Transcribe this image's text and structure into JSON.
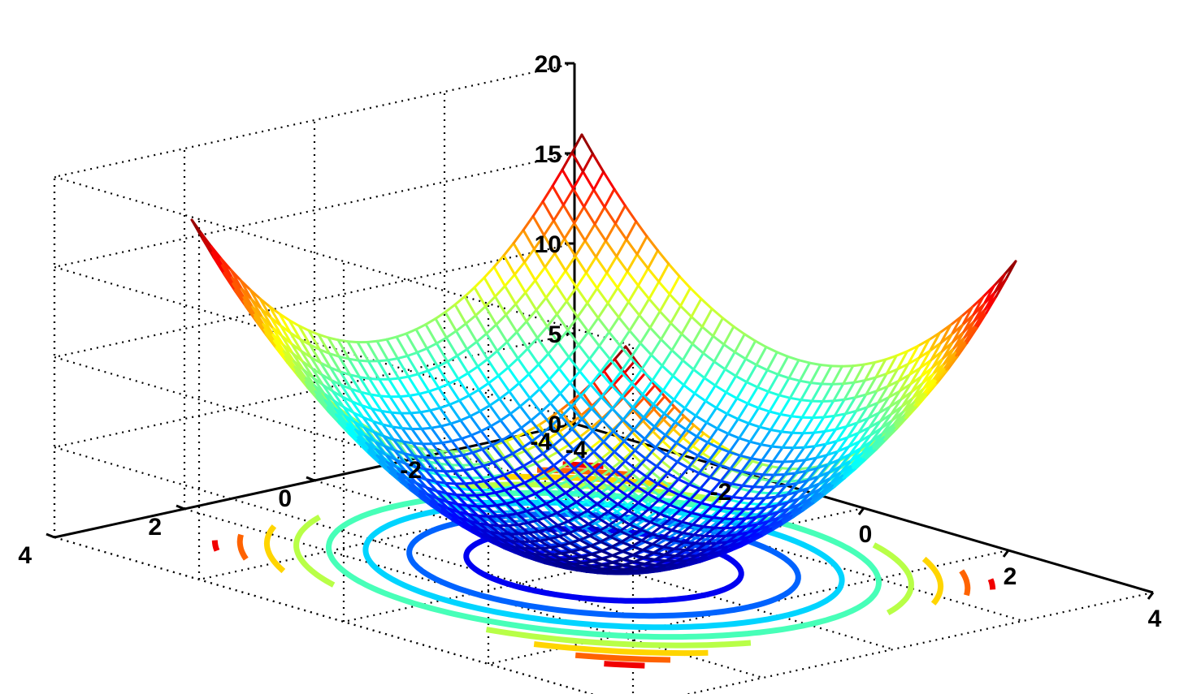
{
  "chart_data": {
    "type": "surface-mesh with contour (meshc)",
    "function": "z = x^2 + y^2",
    "x_range": [
      -3,
      3
    ],
    "y_range": [
      -3,
      3
    ],
    "grid_points": 41,
    "xlim": [
      -4,
      4
    ],
    "ylim": [
      -4,
      4
    ],
    "zlim": [
      0,
      20
    ],
    "x_ticks": [
      "-4",
      "-2",
      "0",
      "2",
      "4"
    ],
    "y_ticks": [
      "-4",
      "-2",
      "0",
      "2",
      "4"
    ],
    "z_ticks": [
      "0",
      "5",
      "10",
      "15",
      "20"
    ],
    "contour_levels": [
      2,
      4,
      6,
      8,
      10,
      12,
      14,
      16
    ],
    "contour_z": 0,
    "colormap": "jet",
    "colormap_stops": [
      "#00008f",
      "#0000ff",
      "#00ffff",
      "#ffff00",
      "#ff0000",
      "#800000"
    ],
    "color_range": [
      0,
      18
    ],
    "grid": true,
    "title": "",
    "xlabel": "",
    "ylabel": "",
    "zlabel": ""
  }
}
